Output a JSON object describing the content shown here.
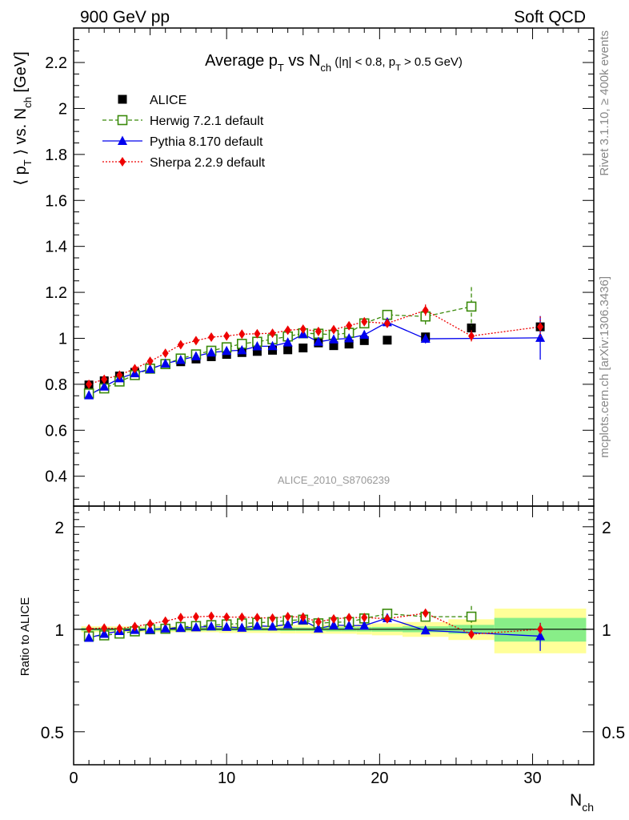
{
  "header": {
    "left": "900 GeV pp",
    "right": "Soft QCD"
  },
  "side_labels": {
    "rivet": "Rivet 3.1.10, ≥ 400k events",
    "mcplots": "mcplots.cern.ch [arXiv:1306.3436]"
  },
  "chart_data": {
    "type": "scatter",
    "title": "Average pT vs Nch (|η| < 0.8, pT > 0.5 GeV)",
    "title_parts": {
      "main": "Average p",
      "sub1": "T",
      "mid": " vs N",
      "sub2": "ch",
      "cond_a": " (|η| < 0.8, p",
      "cond_sub": "T",
      "cond_b": " > 0.5 GeV)"
    },
    "ylabel": "⟨ pT ⟩ vs. Nch [GeV]",
    "ylabel_parts": {
      "a": "⟨ p",
      "sub1": "T",
      "b": " ⟩ vs. N",
      "sub2": "ch",
      "c": " [GeV]"
    },
    "xlabel": "Nch",
    "xlabel_parts": {
      "main": "N",
      "sub": "ch"
    },
    "ratio_ylabel": "Ratio to ALICE",
    "watermark": "ALICE_2010_S8706239",
    "xlim": [
      0,
      34
    ],
    "ylim": [
      0.27,
      2.35
    ],
    "ratio_ylim": [
      0.4,
      2.3
    ],
    "ratio_log_scale": true,
    "x_ticks": [
      0,
      10,
      20,
      30
    ],
    "y_ticks": [
      0.4,
      0.6,
      0.8,
      1,
      1.2,
      1.4,
      1.6,
      1.8,
      2,
      2.2
    ],
    "y_tick_labels": [
      "0.4",
      "0.6",
      "0.8",
      "1",
      "1.2",
      "1.4",
      "1.6",
      "1.8",
      "2",
      "2.2"
    ],
    "ratio_ticks": [
      0.5,
      1,
      2
    ],
    "ratio_tick_labels": [
      "0.5",
      "1",
      "2"
    ],
    "legend_position": "top-left",
    "series": [
      {
        "name": "ALICE",
        "color": "#000000",
        "marker": "filled-square",
        "line": "none",
        "x": [
          1,
          2,
          3,
          4,
          5,
          6,
          7,
          8,
          9,
          10,
          11,
          12,
          13,
          14,
          15,
          16,
          17,
          18,
          19,
          20.5,
          23,
          26,
          30.5
        ],
        "y": [
          0.797,
          0.815,
          0.836,
          0.852,
          0.868,
          0.885,
          0.898,
          0.91,
          0.92,
          0.93,
          0.938,
          0.943,
          0.948,
          0.95,
          0.958,
          0.98,
          0.968,
          0.975,
          0.99,
          0.992,
          1.006,
          1.045,
          1.05
        ]
      },
      {
        "name": "Herwig 7.2.1 default",
        "color": "#3a8a0a",
        "marker": "open-square",
        "line": "dashed",
        "x": [
          1,
          2,
          3,
          4,
          5,
          6,
          7,
          8,
          9,
          10,
          11,
          12,
          13,
          14,
          15,
          16,
          17,
          18,
          19,
          20.5,
          23,
          26
        ],
        "y": [
          0.76,
          0.782,
          0.812,
          0.84,
          0.868,
          0.888,
          0.912,
          0.93,
          0.946,
          0.961,
          0.976,
          0.985,
          0.996,
          1.008,
          1.022,
          1.02,
          1.015,
          1.024,
          1.065,
          1.102,
          1.095,
          1.138
        ],
        "yerr": [
          0,
          0,
          0,
          0,
          0,
          0,
          0,
          0,
          0,
          0,
          0,
          0,
          0,
          0,
          0,
          0,
          0,
          0,
          0,
          0.012,
          0.035,
          0.085
        ]
      },
      {
        "name": "Pythia 8.170 default",
        "color": "#0000ee",
        "marker": "filled-triangle",
        "line": "solid",
        "x": [
          1,
          2,
          3,
          4,
          5,
          6,
          7,
          8,
          9,
          10,
          11,
          12,
          13,
          14,
          15,
          16,
          17,
          18,
          19,
          20.5,
          23,
          30.5
        ],
        "y": [
          0.752,
          0.79,
          0.826,
          0.848,
          0.866,
          0.89,
          0.906,
          0.922,
          0.938,
          0.945,
          0.948,
          0.965,
          0.966,
          0.982,
          1.018,
          0.985,
          0.995,
          1.0,
          1.015,
          1.07,
          0.998,
          1.002
        ],
        "yerr": [
          0,
          0,
          0,
          0,
          0,
          0,
          0,
          0,
          0,
          0,
          0,
          0,
          0,
          0,
          0,
          0,
          0,
          0,
          0,
          0,
          0.02,
          0.095
        ]
      },
      {
        "name": "Sherpa 2.2.9 default",
        "color": "#ee0000",
        "marker": "filled-diamond",
        "line": "dotted",
        "x": [
          1,
          2,
          3,
          4,
          5,
          6,
          7,
          8,
          9,
          10,
          11,
          12,
          13,
          14,
          15,
          16,
          17,
          18,
          19,
          20.5,
          23,
          26,
          30.5
        ],
        "y": [
          0.8,
          0.822,
          0.84,
          0.868,
          0.9,
          0.935,
          0.972,
          0.99,
          1.005,
          1.01,
          1.018,
          1.02,
          1.022,
          1.035,
          1.04,
          1.03,
          1.038,
          1.055,
          1.072,
          1.065,
          1.122,
          1.01,
          1.05
        ],
        "yerr": [
          0,
          0,
          0,
          0,
          0,
          0,
          0,
          0,
          0,
          0,
          0,
          0,
          0,
          0,
          0,
          0,
          0,
          0,
          0,
          0,
          0.025,
          0.025,
          0.045
        ]
      }
    ],
    "ratio_bands": {
      "x_edges": [
        0.5,
        1.5,
        2.5,
        3.5,
        4.5,
        5.5,
        6.5,
        7.5,
        8.5,
        9.5,
        10.5,
        11.5,
        12.5,
        13.5,
        14.5,
        15.5,
        16.5,
        17.5,
        18.5,
        19.5,
        21.5,
        24.5,
        27.5,
        33.5
      ],
      "inner_half_width": [
        0.01,
        0.01,
        0.01,
        0.01,
        0.01,
        0.01,
        0.01,
        0.01,
        0.01,
        0.01,
        0.01,
        0.01,
        0.01,
        0.012,
        0.012,
        0.012,
        0.014,
        0.014,
        0.015,
        0.016,
        0.02,
        0.03,
        0.08
      ],
      "outer_half_width": [
        0.02,
        0.02,
        0.02,
        0.02,
        0.02,
        0.02,
        0.02,
        0.02,
        0.02,
        0.025,
        0.025,
        0.025,
        0.025,
        0.028,
        0.028,
        0.03,
        0.03,
        0.03,
        0.035,
        0.04,
        0.05,
        0.07,
        0.15
      ],
      "inner_color": "#88ee88",
      "outer_color": "#ffff99"
    }
  }
}
